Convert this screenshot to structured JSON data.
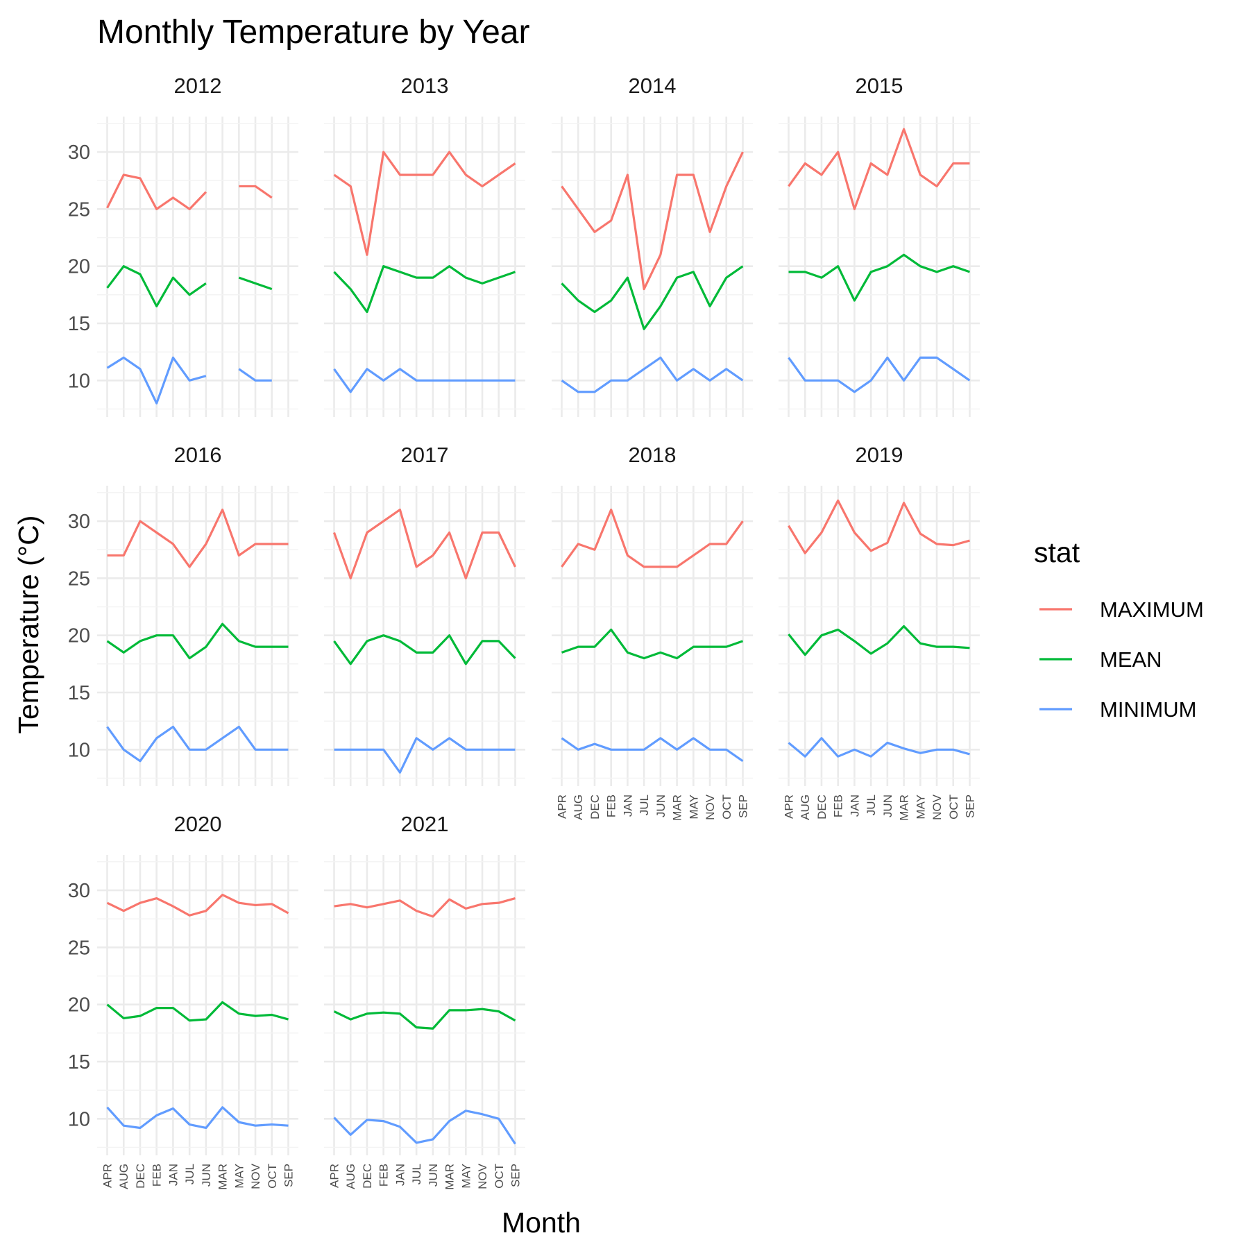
{
  "chart_data": {
    "type": "line",
    "title": "Monthly Temperature by Year",
    "xlabel": "Month",
    "ylabel": "Temperature (°C)",
    "categories": [
      "APR",
      "AUG",
      "DEC",
      "FEB",
      "JAN",
      "JUL",
      "JUN",
      "MAR",
      "MAY",
      "NOV",
      "OCT",
      "SEP"
    ],
    "y_ticks": [
      10,
      15,
      20,
      25,
      30
    ],
    "ylim": [
      6.8,
      33.1
    ],
    "grid": true,
    "legend": {
      "title": "stat",
      "position": "right",
      "entries": [
        {
          "name": "MAXIMUM",
          "color": "#F8766D"
        },
        {
          "name": "MEAN",
          "color": "#00BA38"
        },
        {
          "name": "MINIMUM",
          "color": "#619CFF"
        }
      ]
    },
    "facets": [
      {
        "year": "2012",
        "series": [
          {
            "name": "MAXIMUM",
            "values": [
              25.1,
              28.0,
              27.7,
              25.0,
              26.0,
              25.0,
              26.5,
              null,
              27.0,
              27.0,
              26.0,
              null
            ]
          },
          {
            "name": "MEAN",
            "values": [
              18.1,
              20.0,
              19.3,
              16.5,
              19.0,
              17.5,
              18.5,
              null,
              19.0,
              18.5,
              18.0,
              null
            ]
          },
          {
            "name": "MINIMUM",
            "values": [
              11.1,
              12.0,
              11.0,
              8.0,
              12.0,
              10.0,
              10.4,
              null,
              11.0,
              10.0,
              10.0,
              null
            ]
          }
        ]
      },
      {
        "year": "2013",
        "series": [
          {
            "name": "MAXIMUM",
            "values": [
              28.0,
              27.0,
              21.0,
              30.0,
              28.0,
              28.0,
              28.0,
              30.0,
              28.0,
              27.0,
              28.0,
              29.0
            ]
          },
          {
            "name": "MEAN",
            "values": [
              19.5,
              18.0,
              16.0,
              20.0,
              19.5,
              19.0,
              19.0,
              20.0,
              19.0,
              18.5,
              19.0,
              19.5
            ]
          },
          {
            "name": "MINIMUM",
            "values": [
              11.0,
              9.0,
              11.0,
              10.0,
              11.0,
              10.0,
              10.0,
              10.0,
              10.0,
              10.0,
              10.0,
              10.0
            ]
          }
        ]
      },
      {
        "year": "2014",
        "series": [
          {
            "name": "MAXIMUM",
            "values": [
              27.0,
              25.0,
              23.0,
              24.0,
              28.0,
              18.0,
              21.0,
              28.0,
              28.0,
              23.0,
              27.0,
              30.0
            ]
          },
          {
            "name": "MEAN",
            "values": [
              18.5,
              17.0,
              16.0,
              17.0,
              19.0,
              14.5,
              16.5,
              19.0,
              19.5,
              16.5,
              19.0,
              20.0
            ]
          },
          {
            "name": "MINIMUM",
            "values": [
              10.0,
              9.0,
              9.0,
              10.0,
              10.0,
              11.0,
              12.0,
              10.0,
              11.0,
              10.0,
              11.0,
              10.0
            ]
          }
        ]
      },
      {
        "year": "2015",
        "series": [
          {
            "name": "MAXIMUM",
            "values": [
              27.0,
              29.0,
              28.0,
              30.0,
              25.0,
              29.0,
              28.0,
              32.0,
              28.0,
              27.0,
              29.0,
              29.0
            ]
          },
          {
            "name": "MEAN",
            "values": [
              19.5,
              19.5,
              19.0,
              20.0,
              17.0,
              19.5,
              20.0,
              21.0,
              20.0,
              19.5,
              20.0,
              19.5
            ]
          },
          {
            "name": "MINIMUM",
            "values": [
              12.0,
              10.0,
              10.0,
              10.0,
              9.0,
              10.0,
              12.0,
              10.0,
              12.0,
              12.0,
              11.0,
              10.0
            ]
          }
        ]
      },
      {
        "year": "2016",
        "series": [
          {
            "name": "MAXIMUM",
            "values": [
              27.0,
              27.0,
              30.0,
              29.0,
              28.0,
              26.0,
              28.0,
              31.0,
              27.0,
              28.0,
              28.0,
              28.0
            ]
          },
          {
            "name": "MEAN",
            "values": [
              19.5,
              18.5,
              19.5,
              20.0,
              20.0,
              18.0,
              19.0,
              21.0,
              19.5,
              19.0,
              19.0,
              19.0
            ]
          },
          {
            "name": "MINIMUM",
            "values": [
              12.0,
              10.0,
              9.0,
              11.0,
              12.0,
              10.0,
              10.0,
              11.0,
              12.0,
              10.0,
              10.0,
              10.0
            ]
          }
        ]
      },
      {
        "year": "2017",
        "series": [
          {
            "name": "MAXIMUM",
            "values": [
              29.0,
              25.0,
              29.0,
              30.0,
              31.0,
              26.0,
              27.0,
              29.0,
              25.0,
              29.0,
              29.0,
              26.0
            ]
          },
          {
            "name": "MEAN",
            "values": [
              19.5,
              17.5,
              19.5,
              20.0,
              19.5,
              18.5,
              18.5,
              20.0,
              17.5,
              19.5,
              19.5,
              18.0
            ]
          },
          {
            "name": "MINIMUM",
            "values": [
              10.0,
              10.0,
              10.0,
              10.0,
              8.0,
              11.0,
              10.0,
              11.0,
              10.0,
              10.0,
              10.0,
              10.0
            ]
          }
        ]
      },
      {
        "year": "2018",
        "series": [
          {
            "name": "MAXIMUM",
            "values": [
              26.0,
              28.0,
              27.5,
              31.0,
              27.0,
              26.0,
              26.0,
              26.0,
              27.0,
              28.0,
              28.0,
              30.0
            ]
          },
          {
            "name": "MEAN",
            "values": [
              18.5,
              19.0,
              19.0,
              20.5,
              18.5,
              18.0,
              18.5,
              18.0,
              19.0,
              19.0,
              19.0,
              19.5
            ]
          },
          {
            "name": "MINIMUM",
            "values": [
              11.0,
              10.0,
              10.5,
              10.0,
              10.0,
              10.0,
              11.0,
              10.0,
              11.0,
              10.0,
              10.0,
              9.0
            ]
          }
        ]
      },
      {
        "year": "2019",
        "series": [
          {
            "name": "MAXIMUM",
            "values": [
              29.6,
              27.2,
              29.0,
              31.8,
              29.0,
              27.4,
              28.1,
              31.6,
              28.9,
              28.0,
              27.9,
              28.3
            ]
          },
          {
            "name": "MEAN",
            "values": [
              20.1,
              18.3,
              20.0,
              20.5,
              19.5,
              18.4,
              19.3,
              20.8,
              19.3,
              19.0,
              19.0,
              18.9
            ]
          },
          {
            "name": "MINIMUM",
            "values": [
              10.6,
              9.4,
              11.0,
              9.4,
              10.0,
              9.4,
              10.6,
              10.1,
              9.7,
              10.0,
              10.0,
              9.6
            ]
          }
        ]
      },
      {
        "year": "2020",
        "series": [
          {
            "name": "MAXIMUM",
            "values": [
              28.9,
              28.2,
              28.9,
              29.3,
              28.6,
              27.8,
              28.2,
              29.6,
              28.9,
              28.7,
              28.8,
              28.0
            ]
          },
          {
            "name": "MEAN",
            "values": [
              20.0,
              18.8,
              19.0,
              19.7,
              19.7,
              18.6,
              18.7,
              20.2,
              19.2,
              19.0,
              19.1,
              18.7
            ]
          },
          {
            "name": "MINIMUM",
            "values": [
              11.0,
              9.4,
              9.2,
              10.3,
              10.9,
              9.5,
              9.2,
              11.0,
              9.7,
              9.4,
              9.5,
              9.4
            ]
          }
        ]
      },
      {
        "year": "2021",
        "series": [
          {
            "name": "MAXIMUM",
            "values": [
              28.6,
              28.8,
              28.5,
              28.8,
              29.1,
              28.2,
              27.7,
              29.2,
              28.4,
              28.8,
              28.9,
              29.3
            ]
          },
          {
            "name": "MEAN",
            "values": [
              19.4,
              18.7,
              19.2,
              19.3,
              19.2,
              18.0,
              17.9,
              19.5,
              19.5,
              19.6,
              19.4,
              18.6
            ]
          },
          {
            "name": "MINIMUM",
            "values": [
              10.1,
              8.6,
              9.9,
              9.8,
              9.3,
              7.9,
              8.2,
              9.8,
              10.7,
              10.4,
              10.0,
              7.8
            ]
          }
        ]
      }
    ]
  }
}
